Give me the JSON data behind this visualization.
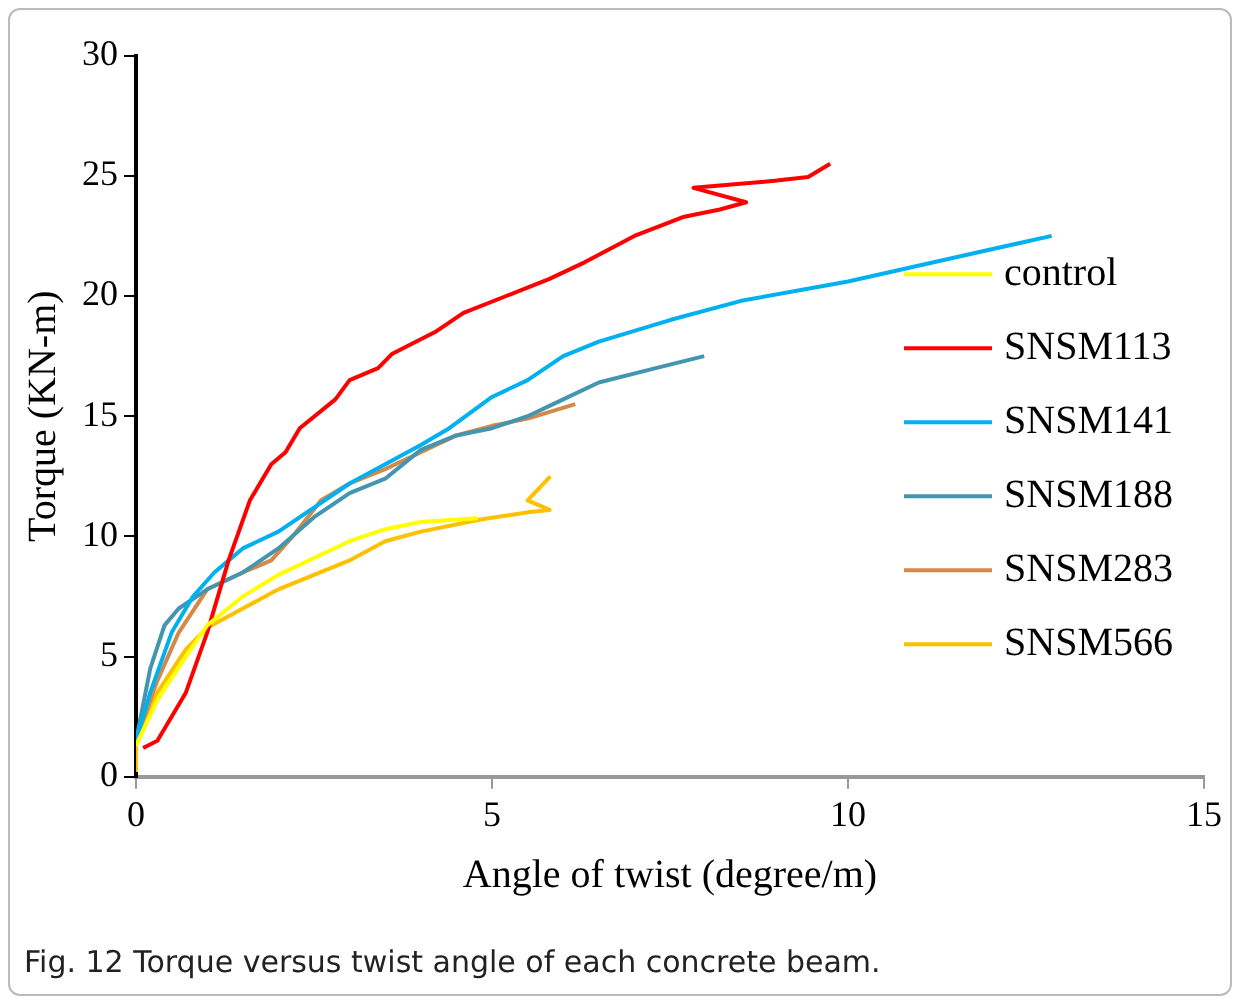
{
  "chart_data": {
    "type": "line",
    "xlabel": "Angle of twist (degree/m)",
    "ylabel": "Torque (KN-m)",
    "xlim": [
      0,
      15
    ],
    "xticks": [
      0,
      5,
      10,
      15
    ],
    "ylim": [
      0,
      30
    ],
    "yticks": [
      0,
      5,
      10,
      15,
      20,
      25,
      30
    ],
    "grid": false,
    "legend": "right",
    "marker": "none",
    "line_style": "solid",
    "annotations": [
      "Fig. 12 Torque versus twist angle of each concrete beam."
    ],
    "series": [
      {
        "name": "control",
        "color": "#ffff00",
        "x": [
          0,
          0.3,
          0.7,
          1,
          1.5,
          2,
          2.5,
          3,
          3.5,
          4,
          4.8
        ],
        "values": [
          1.3,
          3.2,
          5,
          6.3,
          7.5,
          8.4,
          9.1,
          9.8,
          10.3,
          10.6,
          10.75
        ]
      },
      {
        "name": "SNSM113",
        "color": "#ff0000",
        "x": [
          0.1,
          0.3,
          0.7,
          1,
          1.3,
          1.6,
          1.9,
          2.1,
          2.3,
          2.8,
          3,
          3.4,
          3.6,
          4.2,
          4.6,
          5.2,
          5.8,
          6.3,
          7,
          7.7,
          8.2,
          8.57,
          7.83,
          9,
          9.44,
          9.75
        ],
        "values": [
          1.2,
          1.5,
          3.5,
          6,
          9,
          11.5,
          13,
          13.5,
          14.5,
          15.7,
          16.5,
          17,
          17.6,
          18.5,
          19.3,
          20,
          20.7,
          21.4,
          22.5,
          23.3,
          23.6,
          23.9,
          24.5,
          24.8,
          24.95,
          25.5
        ]
      },
      {
        "name": "SNSM141",
        "color": "#00b0f0",
        "x": [
          0,
          0.2,
          0.5,
          0.8,
          1.1,
          1.5,
          2,
          2.5,
          3,
          3.5,
          4,
          4.4,
          5,
          5.5,
          6,
          6.5,
          7.5,
          8.5,
          10,
          11.5,
          12.86
        ],
        "values": [
          1.5,
          3.5,
          6,
          7.5,
          8.5,
          9.5,
          10.2,
          11.2,
          12.2,
          13,
          13.8,
          14.5,
          15.8,
          16.5,
          17.5,
          18.1,
          19,
          19.8,
          20.6,
          21.6,
          22.5
        ]
      },
      {
        "name": "SNSM188",
        "color": "#4496b0",
        "x": [
          0,
          0.2,
          0.4,
          0.6,
          1,
          1.5,
          2,
          2.5,
          3,
          3.5,
          4,
          4.5,
          5,
          5.5,
          6,
          6.5,
          7.3,
          7.98
        ],
        "values": [
          1.5,
          4.5,
          6.3,
          7,
          7.8,
          8.5,
          9.5,
          10.8,
          11.8,
          12.4,
          13.6,
          14.2,
          14.5,
          15,
          15.7,
          16.4,
          17,
          17.5
        ]
      },
      {
        "name": "SNSM283",
        "color": "#d4884a",
        "x": [
          0,
          0.3,
          0.6,
          1,
          1.5,
          1.9,
          2.2,
          2.6,
          3,
          3.5,
          4,
          4.5,
          5,
          5.5,
          6.17
        ],
        "values": [
          1.5,
          4,
          6,
          7.8,
          8.5,
          9,
          10,
          11.5,
          12.2,
          12.8,
          13.5,
          14.2,
          14.6,
          14.9,
          15.5
        ]
      },
      {
        "name": "SNSM566",
        "color": "#ffc000",
        "x": [
          0,
          0,
          0.3,
          0.7,
          1,
          1.5,
          2,
          2.5,
          3,
          3.5,
          4,
          4.84,
          5.5,
          5.81,
          5.5,
          5.82
        ],
        "values": [
          0.2,
          1.5,
          3.5,
          5.3,
          6.2,
          7,
          7.8,
          8.4,
          9,
          9.8,
          10.2,
          10.7,
          11,
          11.1,
          11.5,
          12.5
        ]
      }
    ]
  }
}
